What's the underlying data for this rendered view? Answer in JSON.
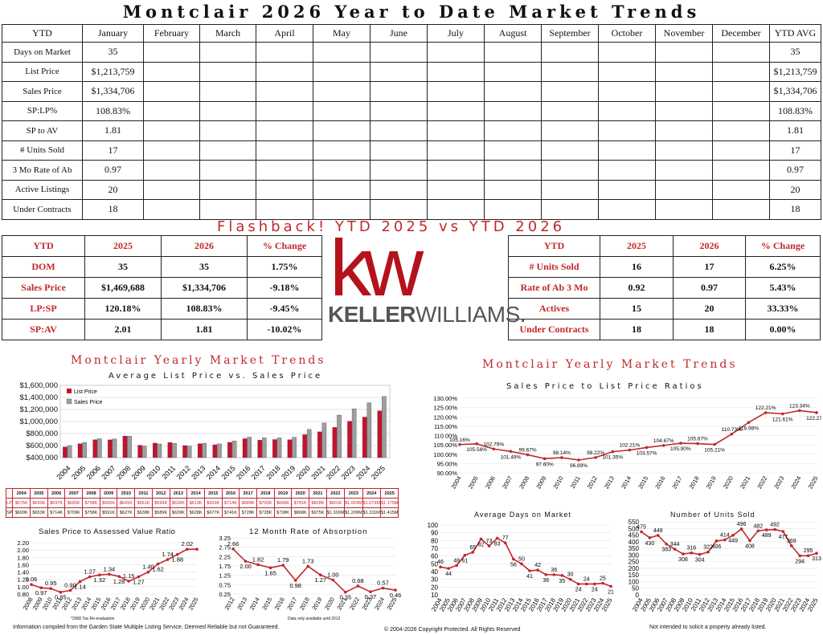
{
  "title": "Montclair 2026 Year to Date Market Trends",
  "table": {
    "headers": [
      "YTD",
      "January",
      "February",
      "March",
      "April",
      "May",
      "June",
      "July",
      "August",
      "September",
      "October",
      "November",
      "December",
      "YTD AVG"
    ],
    "rows": [
      {
        "label": "Days on Market",
        "jan": "35",
        "avg": "35"
      },
      {
        "label": "List Price",
        "jan": "$1,213,759",
        "avg": "$1,213,759"
      },
      {
        "label": "Sales Price",
        "jan": "$1,334,706",
        "avg": "$1,334,706"
      },
      {
        "label": "SP:LP%",
        "jan": "108.83%",
        "avg": "108.83%"
      },
      {
        "label": "SP to AV",
        "jan": "1.81",
        "avg": "1.81"
      },
      {
        "label": "# Units Sold",
        "jan": "17",
        "avg": "17"
      },
      {
        "label": "3 Mo Rate of Ab",
        "jan": "0.97",
        "avg": "0.97"
      },
      {
        "label": "Active Listings",
        "jan": "20",
        "avg": "20"
      },
      {
        "label": "Under Contracts",
        "jan": "18",
        "avg": "18"
      }
    ]
  },
  "flashback": {
    "title": "Flashback!  YTD 2025 vs YTD 2026",
    "left": {
      "headers": [
        "YTD",
        "2025",
        "2026",
        "% Change"
      ],
      "rows": [
        [
          "DOM",
          "35",
          "35",
          "1.75%"
        ],
        [
          "Sales Price",
          "$1,469,688",
          "$1,334,706",
          "-9.18%"
        ],
        [
          "LP:SP",
          "120.18%",
          "108.83%",
          "-9.45%"
        ],
        [
          "SP:AV",
          "2.01",
          "1.81",
          "-10.02%"
        ]
      ]
    },
    "right": {
      "headers": [
        "YTD",
        "2025",
        "2026",
        "% Change"
      ],
      "rows": [
        [
          "# Units Sold",
          "16",
          "17",
          "6.25%"
        ],
        [
          "Rate of Ab 3 Mo",
          "0.92",
          "0.97",
          "5.43%"
        ],
        [
          "Actives",
          "15",
          "20",
          "33.33%"
        ],
        [
          "Under Contracts",
          "18",
          "18",
          "0.00%"
        ]
      ]
    }
  },
  "logo": {
    "kw": "kw",
    "name_bold": "KELLER",
    "name_light": "WILLIAMS.",
    "brand_color": "#b5121b"
  },
  "section_titles": {
    "left": "Montclair Yearly Market Trends",
    "right": "Montclair Yearly Market Trends"
  },
  "colors": {
    "accent": "#c0282b",
    "list_price_bar": "#c8102e",
    "sales_price_bar": "#9e9e9e"
  },
  "chart_data": [
    {
      "type": "bar",
      "title": "Average List Price vs. Sales Price",
      "categories": [
        "2004",
        "2005",
        "2006",
        "2007",
        "2008",
        "2009",
        "2010",
        "2011",
        "2012",
        "2013",
        "2014",
        "2015",
        "2016",
        "2017",
        "2018",
        "2019",
        "2020",
        "2021",
        "2022",
        "2023",
        "2024",
        "2025"
      ],
      "series": [
        {
          "name": "List Price",
          "values": [
            575000,
            630000,
            697000,
            695000,
            758000,
            605000,
            641000,
            651000,
            599000,
            630000,
            613000,
            653000,
            714000,
            689000,
            700000,
            696000,
            781000,
            828000,
            901000,
            1003000,
            1073000,
            1175000
          ]
        },
        {
          "name": "Sales Price",
          "values": [
            600000,
            653000,
            714000,
            709000,
            758000,
            591000,
            627000,
            638000,
            589000,
            639000,
            628000,
            677000,
            741000,
            728000,
            728000,
            738000,
            868000,
            975000,
            1106000,
            1209000,
            1311000,
            1415000
          ]
        }
      ],
      "yticks": [
        "$400,000",
        "$600,000",
        "$800,000",
        "$1,000,000",
        "$1,200,000",
        "$1,400,000",
        "$1,600,000"
      ],
      "ylim": [
        400000,
        1600000
      ],
      "legend": "top-left",
      "table_labels": {
        "lp": "LP",
        "sp": "SP"
      },
      "table_lp": [
        "$575K",
        "$630K",
        "$697K",
        "$695K",
        "$758K",
        "$605K",
        "$641K",
        "$651K",
        "$599K",
        "$630K",
        "$613K",
        "$653K",
        "$714K",
        "$689K",
        "$700K",
        "$696K",
        "$781K",
        "$828K",
        "$901K",
        "$1.003M",
        "$1.073M",
        "$1.175M"
      ],
      "table_sp": [
        "$600K",
        "$653K",
        "$714K",
        "$709K",
        "$758K",
        "$591K",
        "$627K",
        "$638K",
        "$589K",
        "$639K",
        "$628K",
        "$677K",
        "$741K",
        "$728K",
        "$728K",
        "$738K",
        "$868K",
        "$975K",
        "$1.106M",
        "$1.209M",
        "$1.311M",
        "$1.415M"
      ]
    },
    {
      "type": "line",
      "title": "Sales Price to List Price Ratios",
      "x": [
        "2004",
        "2005",
        "2006",
        "2007",
        "2008",
        "2009",
        "2010",
        "2011",
        "2012",
        "2013",
        "2014",
        "2015",
        "2016",
        "2017",
        "2018",
        "2019",
        "2020",
        "2021",
        "2022",
        "2023",
        "2024",
        "2025"
      ],
      "values": [
        105.16,
        105.56,
        102.79,
        101.49,
        99.67,
        97.6,
        98.14,
        96.89,
        98.22,
        101.35,
        102.21,
        103.57,
        104.67,
        105.9,
        105.67,
        105.21,
        110.73,
        116.98,
        122.21,
        121.61,
        123.34,
        122.27
      ],
      "labels": [
        "105.16%",
        "105.56%",
        "102.79%",
        "101.49%",
        "99.67%",
        "97.60%",
        "98.14%",
        "96.89%",
        "98.22%",
        "101.35%",
        "102.21%",
        "103.57%",
        "104.67%",
        "105.90%",
        "105.67%",
        "105.21%",
        "110.73%",
        "116.98%",
        "122.21%",
        "121.61%",
        "123.34%",
        "122.27%"
      ],
      "yticks": [
        "90.00%",
        "95.00%",
        "100.00%",
        "105.00%",
        "110.00%",
        "115.00%",
        "120.00%",
        "125.00%",
        "130.00%"
      ],
      "ylim": [
        90,
        130
      ]
    },
    {
      "type": "line",
      "title": "Sales Price to Assessed Value Ratio",
      "x": [
        "2008",
        "2009",
        "2010",
        "2011",
        "2012",
        "2013",
        "2014",
        "2015",
        "2016",
        "2017",
        "2018",
        "2019",
        "2020",
        "2021",
        "2022",
        "2023",
        "2024",
        "2025"
      ],
      "values": [
        1.06,
        0.97,
        0.95,
        0.85,
        0.9,
        1.14,
        1.27,
        1.32,
        1.34,
        1.28,
        1.15,
        1.27,
        1.4,
        1.62,
        1.74,
        1.88,
        2.02,
        2.02
      ],
      "labels": [
        "1.06",
        "0.97",
        "0.95",
        "0.85",
        "0.90",
        "1.14",
        "1.27",
        "1.32",
        "1.34",
        "1.28",
        "1.15",
        "1.27",
        "1.40",
        "1.62",
        "1.74",
        "1.88",
        "2.02",
        ""
      ],
      "yticks": [
        "0.80",
        "1.00",
        "1.20",
        "1.40",
        "1.60",
        "1.80",
        "2.00",
        "2.20"
      ],
      "ylim": [
        0.8,
        2.2
      ],
      "footnote": "*2008 Tax Re-evaluation"
    },
    {
      "type": "line",
      "title": "12 Month Rate of Absorption",
      "x": [
        "2012",
        "2013",
        "2014",
        "2015",
        "2016",
        "2017",
        "2018",
        "2019",
        "2020",
        "2021",
        "2022",
        "2023",
        "2024",
        "2025"
      ],
      "values": [
        2.66,
        2.0,
        1.82,
        1.65,
        1.79,
        0.98,
        1.73,
        1.27,
        1.0,
        0.35,
        0.68,
        0.37,
        0.57,
        0.46
      ],
      "labels": [
        "2.66",
        "2.00",
        "1.82",
        "1.65",
        "1.79",
        "0.98",
        "1.73",
        "1.27",
        "1.00",
        "0.35",
        "0.68",
        "0.37",
        "0.57",
        "0.46"
      ],
      "yticks": [
        "0.25",
        "0.75",
        "1.25",
        "1.75",
        "2.25",
        "2.75",
        "3.25"
      ],
      "ylim": [
        0.25,
        3.25
      ],
      "footnote": "Data only available until 2012"
    },
    {
      "type": "line",
      "title": "Average Days on Market",
      "x": [
        "2004",
        "2005",
        "2006",
        "2007",
        "2008",
        "2009",
        "2010",
        "2011",
        "2012",
        "2013",
        "2014",
        "2015",
        "2016",
        "2017",
        "2018",
        "2019",
        "2020",
        "2021",
        "2022",
        "2023",
        "2024",
        "2025"
      ],
      "values": [
        46,
        44,
        48,
        61,
        65,
        82,
        73,
        83,
        77,
        56,
        50,
        41,
        42,
        36,
        36,
        35,
        30,
        24,
        24,
        24,
        25,
        21
      ],
      "labels": [
        "46",
        "44",
        "48",
        "61",
        "65",
        "82",
        "73",
        "83",
        "77",
        "56",
        "50",
        "41",
        "42",
        "36",
        "36",
        "35",
        "30",
        "24",
        "24",
        "24",
        "25",
        "21"
      ],
      "yticks": [
        "10",
        "20",
        "30",
        "40",
        "50",
        "60",
        "70",
        "80",
        "90",
        "100"
      ],
      "ylim": [
        10,
        100
      ]
    },
    {
      "type": "line",
      "title": "Number of Units Sold",
      "x": [
        "2004",
        "2005",
        "2006",
        "2007",
        "2008",
        "2009",
        "2010",
        "2011",
        "2012",
        "2013",
        "2014",
        "2015",
        "2016",
        "2017",
        "2018",
        "2019",
        "2020",
        "2021",
        "2022",
        "2023",
        "2024",
        "2025"
      ],
      "values": [
        475,
        430,
        448,
        383,
        344,
        308,
        316,
        304,
        322,
        406,
        414,
        449,
        496,
        408,
        482,
        489,
        492,
        477,
        369,
        294,
        295,
        313
      ],
      "labels": [
        "475",
        "430",
        "448",
        "383",
        "344",
        "308",
        "316",
        "304",
        "322",
        "406",
        "414",
        "449",
        "496",
        "408",
        "482",
        "489",
        "492",
        "477",
        "369",
        "294",
        "295",
        "313"
      ],
      "yticks": [
        "0",
        "50",
        "100",
        "150",
        "200",
        "250",
        "300",
        "350",
        "400",
        "450",
        "500",
        "550"
      ],
      "ylim": [
        0,
        550
      ]
    }
  ],
  "footer": {
    "left": "Information compiled from the Garden State Multiple Listing Service.  Deemed Reliable but not Guaranteed.",
    "center": "© 2004-2026 Copyright Protected.  All Rights Reserved",
    "right": "Not intended to solicit a property already listed."
  }
}
